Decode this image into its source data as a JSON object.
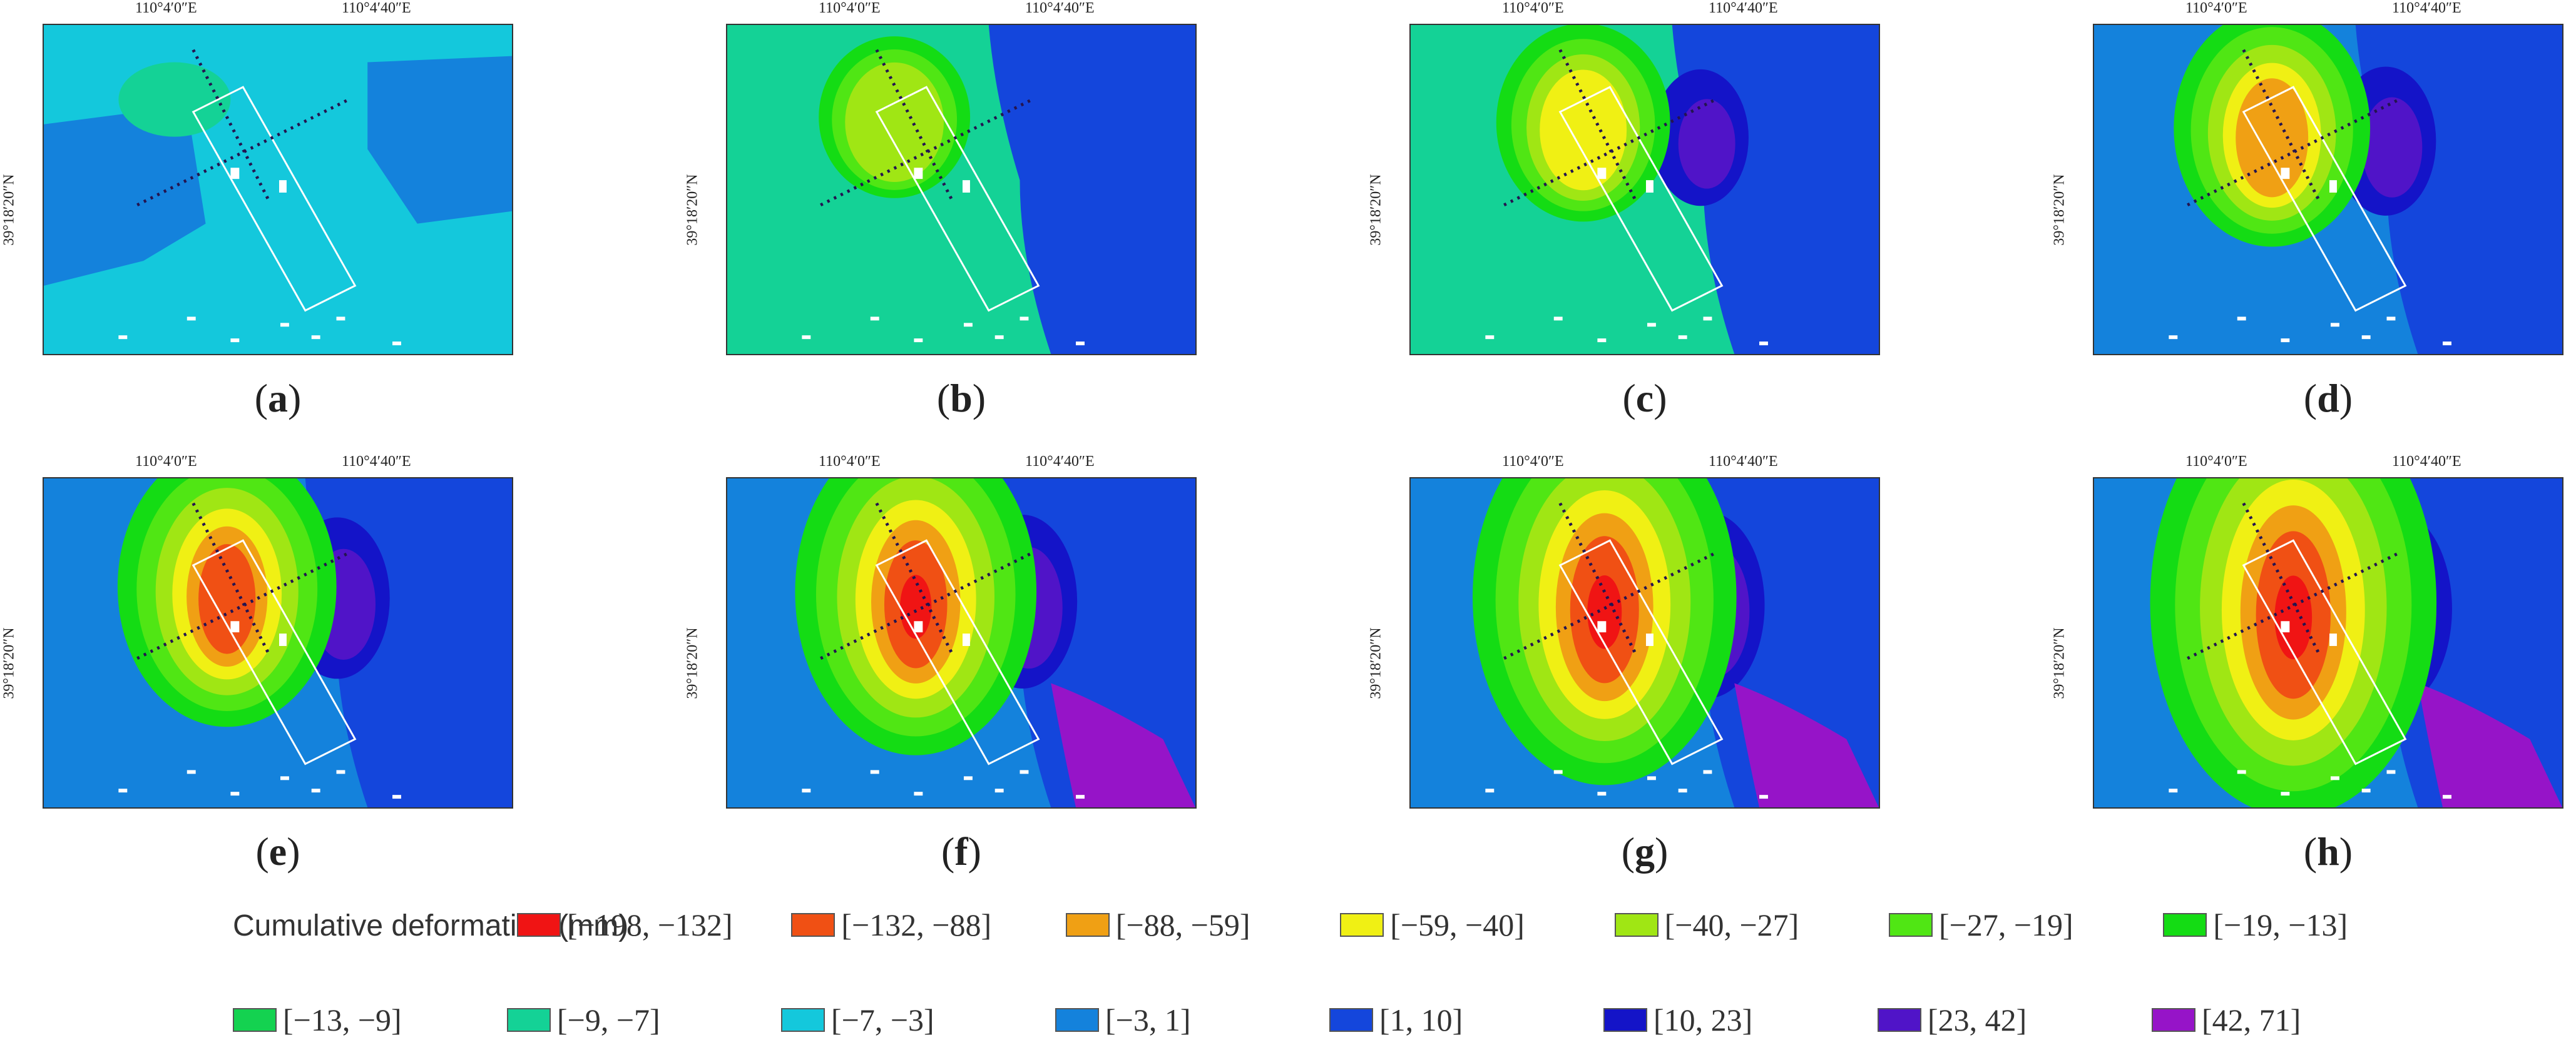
{
  "axes": {
    "lon_tick_1": "110°4′0″E",
    "lon_tick_2": "110°4′40″E",
    "lat_tick": "39°18′20″N"
  },
  "panels": [
    {
      "label": "a",
      "stage": 0
    },
    {
      "label": "b",
      "stage": 1
    },
    {
      "label": "c",
      "stage": 2
    },
    {
      "label": "d",
      "stage": 3
    },
    {
      "label": "e",
      "stage": 4
    },
    {
      "label": "f",
      "stage": 5
    },
    {
      "label": "g",
      "stage": 6
    },
    {
      "label": "h",
      "stage": 7
    }
  ],
  "legend": {
    "title": "Cumulative deformation/(mm)",
    "classes": [
      {
        "range": "[−198, −132]",
        "color": "#f01414"
      },
      {
        "range": "[−132, −88]",
        "color": "#f05014"
      },
      {
        "range": "[−88, −59]",
        "color": "#f0a014"
      },
      {
        "range": "[−59, −40]",
        "color": "#f0f014"
      },
      {
        "range": "[−40, −27]",
        "color": "#a0e614"
      },
      {
        "range": "[−27, −19]",
        "color": "#50e614"
      },
      {
        "range": "[−19, −13]",
        "color": "#14dc14"
      },
      {
        "range": "[−13, −9]",
        "color": "#14d250"
      },
      {
        "range": "[−9, −7]",
        "color": "#14d296"
      },
      {
        "range": "[−7, −3]",
        "color": "#14c8dc"
      },
      {
        "range": "[−3, 1]",
        "color": "#1482dc"
      },
      {
        "range": "[1, 10]",
        "color": "#1446dc"
      },
      {
        "range": "[10, 23]",
        "color": "#1414c8"
      },
      {
        "range": "[23, 42]",
        "color": "#5014c8"
      },
      {
        "range": "[42, 71]",
        "color": "#9614c8"
      }
    ]
  }
}
